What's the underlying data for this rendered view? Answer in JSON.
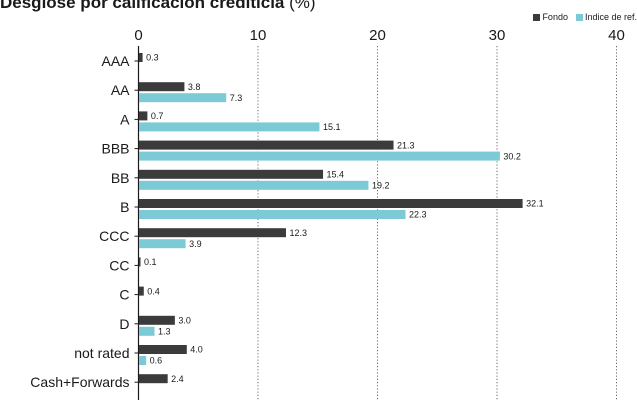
{
  "title": "Desglose por calificación crediticia",
  "title_unit": "(%)",
  "colors": {
    "fondo": "#3b3b3b",
    "indice": "#7ccad6",
    "axis": "#1a1a1a",
    "grid": "#444444"
  },
  "chart_data": {
    "type": "bar",
    "orientation": "horizontal",
    "categories": [
      "AAA",
      "AA",
      "A",
      "BBB",
      "BB",
      "B",
      "CCC",
      "CC",
      "C",
      "D",
      "not rated",
      "Cash+Forwards"
    ],
    "series": [
      {
        "name": "Fondo",
        "values": [
          0.3,
          3.8,
          0.7,
          21.3,
          15.4,
          32.1,
          12.3,
          0.1,
          0.4,
          3.0,
          4.0,
          2.4
        ]
      },
      {
        "name": "Indice de ref.",
        "values": [
          null,
          7.3,
          15.1,
          30.2,
          19.2,
          22.3,
          3.9,
          null,
          null,
          1.3,
          0.6,
          null
        ]
      }
    ],
    "xlim": [
      0,
      40
    ],
    "xticks": [
      "0",
      "10",
      "20",
      "30",
      "40"
    ],
    "grid": "vertical dotted",
    "legend": "top-right",
    "value_labels": [
      [
        "0.3",
        "3.8",
        "0.7",
        "21.3",
        "15.4",
        "32.1",
        "12.3",
        "0.1",
        "0.4",
        "3.0",
        "4.0",
        "2.4"
      ],
      [
        null,
        "7.3",
        "15.1",
        "30.2",
        "19.2",
        "22.3",
        "3.9",
        null,
        null,
        "1.3",
        "0.6",
        null
      ]
    ]
  }
}
